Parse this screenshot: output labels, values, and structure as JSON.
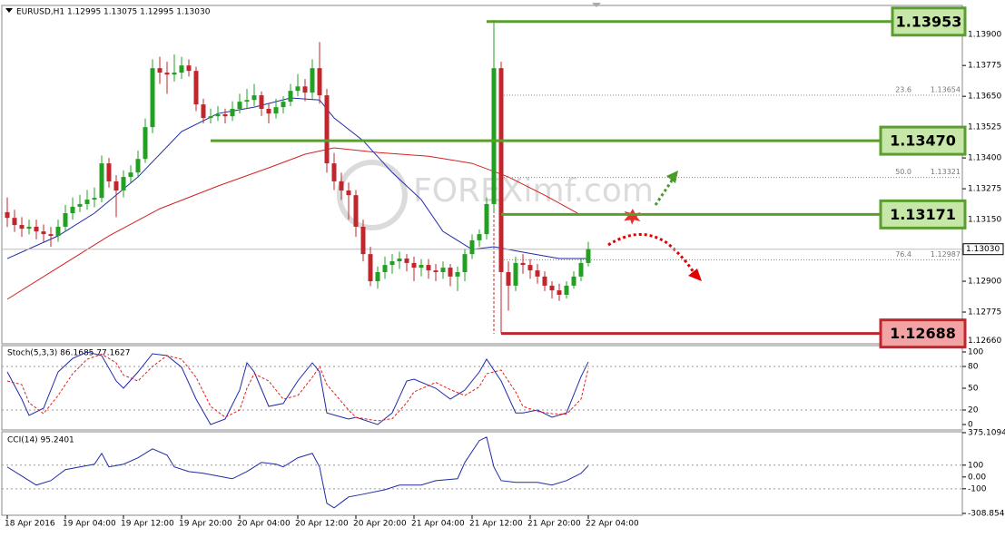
{
  "chart_data": [
    {
      "type": "candlestick",
      "title": "EURUSD,H1  1.12995 1.13075 1.12995 1.13030",
      "watermark": "FOREXimf.com",
      "up_color": "#22a022",
      "down_color": "#c0262c",
      "xlim": [
        -0.75,
        131.5
      ],
      "xticks": [
        {
          "value": 0,
          "label": "18 Apr 2016"
        },
        {
          "value": 8,
          "label": "19 Apr 04:00"
        },
        {
          "value": 16,
          "label": "19 Apr 12:00"
        },
        {
          "value": 24,
          "label": "19 Apr 20:00"
        },
        {
          "value": 32,
          "label": "20 Apr 04:00"
        },
        {
          "value": 40,
          "label": "20 Apr 12:00"
        },
        {
          "value": 48,
          "label": "20 Apr 20:00"
        },
        {
          "value": 56,
          "label": "21 Apr 04:00"
        },
        {
          "value": 64,
          "label": "21 Apr 12:00"
        },
        {
          "value": 72,
          "label": "21 Apr 20:00"
        },
        {
          "value": 80,
          "label": "22 Apr 04:00"
        }
      ],
      "ylim": [
        1.1265,
        1.14
      ],
      "yticks": [
        {
          "value": 1.139,
          "label": "1.13900"
        },
        {
          "value": 1.13775,
          "label": "1.13775"
        },
        {
          "value": 1.1365,
          "label": "1.13650"
        },
        {
          "value": 1.13525,
          "label": "1.13525"
        },
        {
          "value": 1.134,
          "label": "1.13400"
        },
        {
          "value": 1.13275,
          "label": "1.13275"
        },
        {
          "value": 1.1315,
          "label": "1.13150"
        },
        {
          "value": 1.129,
          "label": "1.12900"
        },
        {
          "value": 1.12775,
          "label": "1.12775"
        },
        {
          "value": 1.1266,
          "label": "1.12660"
        }
      ],
      "current_price": {
        "value": 1.1303,
        "label": "1.13030"
      },
      "ohlc": [
        [
          1.1318,
          1.1324,
          1.1312,
          1.13157
        ],
        [
          1.13157,
          1.1319,
          1.131,
          1.13128
        ],
        [
          1.13128,
          1.1316,
          1.1308,
          1.13113
        ],
        [
          1.13113,
          1.1315,
          1.1309,
          1.13121
        ],
        [
          1.13121,
          1.1315,
          1.1307,
          1.13102
        ],
        [
          1.13102,
          1.1313,
          1.1306,
          1.13091
        ],
        [
          1.13091,
          1.1312,
          1.1304,
          1.13084
        ],
        [
          1.13084,
          1.1315,
          1.1306,
          1.13121
        ],
        [
          1.13121,
          1.1321,
          1.131,
          1.13176
        ],
        [
          1.13176,
          1.1324,
          1.1315,
          1.13202
        ],
        [
          1.13202,
          1.1325,
          1.1318,
          1.13213
        ],
        [
          1.13213,
          1.1327,
          1.1319,
          1.13231
        ],
        [
          1.13231,
          1.1328,
          1.132,
          1.13238
        ],
        [
          1.13238,
          1.1341,
          1.1322,
          1.13378
        ],
        [
          1.13378,
          1.134,
          1.1328,
          1.13305
        ],
        [
          1.13305,
          1.1333,
          1.1316,
          1.13268
        ],
        [
          1.13268,
          1.1335,
          1.1324,
          1.13323
        ],
        [
          1.13323,
          1.1337,
          1.133,
          1.13341
        ],
        [
          1.13341,
          1.1343,
          1.1332,
          1.13396
        ],
        [
          1.13396,
          1.1356,
          1.1338,
          1.13525
        ],
        [
          1.13525,
          1.138,
          1.135,
          1.13764
        ],
        [
          1.13764,
          1.1381,
          1.137,
          1.13746
        ],
        [
          1.13746,
          1.1379,
          1.1366,
          1.13738
        ],
        [
          1.13738,
          1.1382,
          1.1371,
          1.13746
        ],
        [
          1.13746,
          1.1381,
          1.1372,
          1.13775
        ],
        [
          1.13775,
          1.138,
          1.1373,
          1.13753
        ],
        [
          1.13753,
          1.1377,
          1.1359,
          1.13617
        ],
        [
          1.13617,
          1.1364,
          1.1354,
          1.13562
        ],
        [
          1.13562,
          1.136,
          1.1354,
          1.13569
        ],
        [
          1.13569,
          1.1361,
          1.1355,
          1.13577
        ],
        [
          1.13577,
          1.136,
          1.1354,
          1.13569
        ],
        [
          1.13569,
          1.1363,
          1.1355,
          1.13599
        ],
        [
          1.13599,
          1.1366,
          1.1358,
          1.13628
        ],
        [
          1.13628,
          1.1368,
          1.136,
          1.13635
        ],
        [
          1.13635,
          1.137,
          1.1361,
          1.13654
        ],
        [
          1.13654,
          1.1367,
          1.1357,
          1.13599
        ],
        [
          1.13599,
          1.1362,
          1.1354,
          1.1358
        ],
        [
          1.1358,
          1.1364,
          1.1356,
          1.13606
        ],
        [
          1.13606,
          1.1365,
          1.1358,
          1.13628
        ],
        [
          1.13628,
          1.137,
          1.1361,
          1.13672
        ],
        [
          1.13672,
          1.1374,
          1.1365,
          1.1369
        ],
        [
          1.1369,
          1.1372,
          1.1363,
          1.13665
        ],
        [
          1.13665,
          1.138,
          1.1364,
          1.13764
        ],
        [
          1.13764,
          1.1387,
          1.1362,
          1.13654
        ],
        [
          1.13654,
          1.1368,
          1.1334,
          1.13378
        ],
        [
          1.13378,
          1.1342,
          1.1327,
          1.13305
        ],
        [
          1.13305,
          1.1334,
          1.1323,
          1.13268
        ],
        [
          1.13268,
          1.133,
          1.1315,
          1.13249
        ],
        [
          1.13249,
          1.1327,
          1.1308,
          1.13121
        ],
        [
          1.13121,
          1.1315,
          1.1298,
          1.1301
        ],
        [
          1.1301,
          1.1304,
          1.1288,
          1.129
        ],
        [
          1.129,
          1.1296,
          1.1287,
          1.12937
        ],
        [
          1.12937,
          1.13,
          1.1291,
          1.12966
        ],
        [
          1.12966,
          1.1301,
          1.1293,
          1.12981
        ],
        [
          1.12981,
          1.1302,
          1.1295,
          1.12992
        ],
        [
          1.12992,
          1.1301,
          1.1294,
          1.12974
        ],
        [
          1.12974,
          1.13,
          1.129,
          1.12955
        ],
        [
          1.12955,
          1.1299,
          1.1292,
          1.12966
        ],
        [
          1.12966,
          1.1299,
          1.1291,
          1.12944
        ],
        [
          1.12944,
          1.1297,
          1.129,
          1.12937
        ],
        [
          1.12937,
          1.1298,
          1.1291,
          1.12955
        ],
        [
          1.12955,
          1.1297,
          1.1288,
          1.12919
        ],
        [
          1.12919,
          1.1296,
          1.1286,
          1.12937
        ],
        [
          1.12937,
          1.1303,
          1.129,
          1.1301
        ],
        [
          1.1301,
          1.1309,
          1.1299,
          1.13066
        ],
        [
          1.13066,
          1.1311,
          1.1304,
          1.13091
        ],
        [
          1.13091,
          1.1324,
          1.1307,
          1.13213
        ],
        [
          1.13213,
          1.13953,
          1.1318,
          1.13764
        ],
        [
          1.13764,
          1.1379,
          1.12688,
          1.12937
        ],
        [
          1.12937,
          1.1298,
          1.1278,
          1.12882
        ],
        [
          1.12882,
          1.13,
          1.1286,
          1.12974
        ],
        [
          1.12974,
          1.1301,
          1.1293,
          1.12966
        ],
        [
          1.12966,
          1.1299,
          1.1291,
          1.12944
        ],
        [
          1.12944,
          1.1297,
          1.1289,
          1.12919
        ],
        [
          1.12919,
          1.1294,
          1.1286,
          1.12882
        ],
        [
          1.12882,
          1.129,
          1.1283,
          1.12863
        ],
        [
          1.12863,
          1.1289,
          1.1282,
          1.12845
        ],
        [
          1.12845,
          1.129,
          1.1283,
          1.12882
        ],
        [
          1.12882,
          1.1294,
          1.1287,
          1.12919
        ],
        [
          1.12919,
          1.1299,
          1.129,
          1.12974
        ],
        [
          1.12974,
          1.1306,
          1.1296,
          1.1303
        ]
      ],
      "moving_averages": [
        {
          "color": "#1f2aa8",
          "x": [
            0,
            7,
            12,
            18,
            24,
            29,
            34,
            39,
            43,
            45,
            49,
            53,
            57,
            60,
            64,
            67,
            71,
            76,
            80
          ],
          "values": [
            1.12992,
            1.13084,
            1.13176,
            1.13323,
            1.13507,
            1.1358,
            1.13606,
            1.13643,
            1.13635,
            1.13562,
            1.1347,
            1.13341,
            1.13231,
            1.13102,
            1.13029,
            1.1304,
            1.13018,
            1.12992,
            1.12992
          ]
        },
        {
          "color": "#d42020",
          "x": [
            0,
            6,
            14,
            21,
            29,
            36,
            41,
            45,
            51,
            58,
            64,
            69,
            74,
            79
          ],
          "values": [
            1.12827,
            1.12937,
            1.13084,
            1.13194,
            1.13286,
            1.1336,
            1.13415,
            1.13441,
            1.13422,
            1.13407,
            1.13378,
            1.13323,
            1.13249,
            1.13168
          ]
        }
      ],
      "levels": [
        {
          "value": 1.13953,
          "from": 66,
          "color": "#5a9e2f",
          "fill": "#c6e7a7"
        },
        {
          "value": 1.1347,
          "label": "1.13470",
          "from": 28,
          "color": "#5a9e2f",
          "fill": "#c6e7a7"
        },
        {
          "value": 1.13171,
          "from": 68,
          "color": "#5a9e2f",
          "fill": "#c6e7a7"
        },
        {
          "value": 1.12688,
          "from": 68,
          "color": "#c0262c",
          "fill": "#f3a3a3"
        }
      ],
      "fib_levels": [
        {
          "ratio": "23.6",
          "value": 1.13654,
          "from": 68
        },
        {
          "ratio": "50.0",
          "value": 1.13321,
          "from": 68
        },
        {
          "ratio": "76.4",
          "value": 1.12987,
          "from": 68
        }
      ]
    },
    {
      "type": "line",
      "title": "Stoch(5,3,3) 86.1685 77.1627",
      "ylim": [
        0,
        100
      ],
      "yticks": [
        100,
        80,
        50,
        20,
        0
      ],
      "levels": [
        20,
        80
      ],
      "series": [
        {
          "color": "#1f2aa8",
          "x": [
            0,
            2,
            3,
            5,
            7,
            9,
            11,
            13,
            15,
            16,
            18,
            20,
            22,
            24,
            26,
            28,
            30,
            32,
            33,
            34,
            36,
            38,
            40,
            42,
            43,
            44,
            47,
            48,
            51,
            53,
            55,
            56,
            59,
            61,
            63,
            65,
            66,
            68,
            70,
            71,
            73,
            75,
            77,
            79,
            80
          ],
          "values": [
            72.5,
            35,
            12.5,
            22.5,
            72.5,
            91,
            100,
            95,
            60,
            50,
            72.5,
            97.5,
            95,
            79,
            35,
            0,
            7.5,
            47.5,
            85,
            72.5,
            25,
            29,
            60,
            85,
            72.5,
            16,
            7.5,
            10,
            0,
            16,
            60,
            62.5,
            50,
            35,
            47.5,
            72.5,
            90,
            60,
            16,
            16,
            20,
            10,
            16,
            66,
            86.1685
          ]
        },
        {
          "color": "#e02020",
          "dash": true,
          "x": [
            0,
            2,
            3,
            5,
            7,
            9,
            11,
            13,
            15,
            16,
            18,
            20,
            22,
            24,
            26,
            28,
            30,
            32,
            33,
            34,
            36,
            38,
            40,
            42,
            43,
            44,
            47,
            48,
            51,
            53,
            55,
            56,
            59,
            61,
            63,
            65,
            66,
            68,
            70,
            71,
            73,
            75,
            77,
            79,
            80
          ],
          "values": [
            60,
            55,
            30,
            15,
            40,
            70,
            90,
            97,
            85,
            68,
            60,
            80,
            95,
            90,
            65,
            25,
            10,
            20,
            50,
            70,
            60,
            35,
            40,
            65,
            80,
            55,
            20,
            10,
            5,
            8,
            30,
            45,
            58,
            48,
            40,
            52,
            70,
            75,
            45,
            25,
            18,
            15,
            14,
            35,
            77.1627
          ]
        }
      ]
    },
    {
      "type": "line",
      "title": "CCI(14) 95.2401",
      "ylim": [
        -308.8549,
        375.1094
      ],
      "yticks": [
        375.1094,
        100,
        {
          "value": 0,
          "label": "0.00"
        },
        -100,
        -308.8549
      ],
      "levels": [
        100,
        -100
      ],
      "series": [
        {
          "color": "#1f2aa8",
          "x": [
            0,
            2,
            4,
            6,
            8,
            10,
            12,
            13,
            14,
            16,
            18,
            20,
            22,
            23,
            25,
            27,
            29,
            31,
            33,
            35,
            37,
            38,
            40,
            42,
            43,
            44,
            45,
            47,
            49,
            52,
            54,
            57,
            59,
            62,
            63,
            65,
            66,
            67,
            68,
            70,
            73,
            75,
            77,
            79,
            80
          ],
          "values": [
            85,
            8,
            -69,
            -31,
            62,
            85,
            108,
            200,
            85,
            108,
            162,
            238,
            185,
            85,
            46,
            31,
            8,
            -15,
            46,
            123,
            108,
            85,
            162,
            200,
            85,
            -223,
            -262,
            -169,
            -146,
            -108,
            -69,
            -69,
            -31,
            -15,
            123,
            308,
            338,
            85,
            -31,
            -46,
            -46,
            -69,
            -31,
            31,
            95.2401
          ]
        }
      ]
    }
  ]
}
